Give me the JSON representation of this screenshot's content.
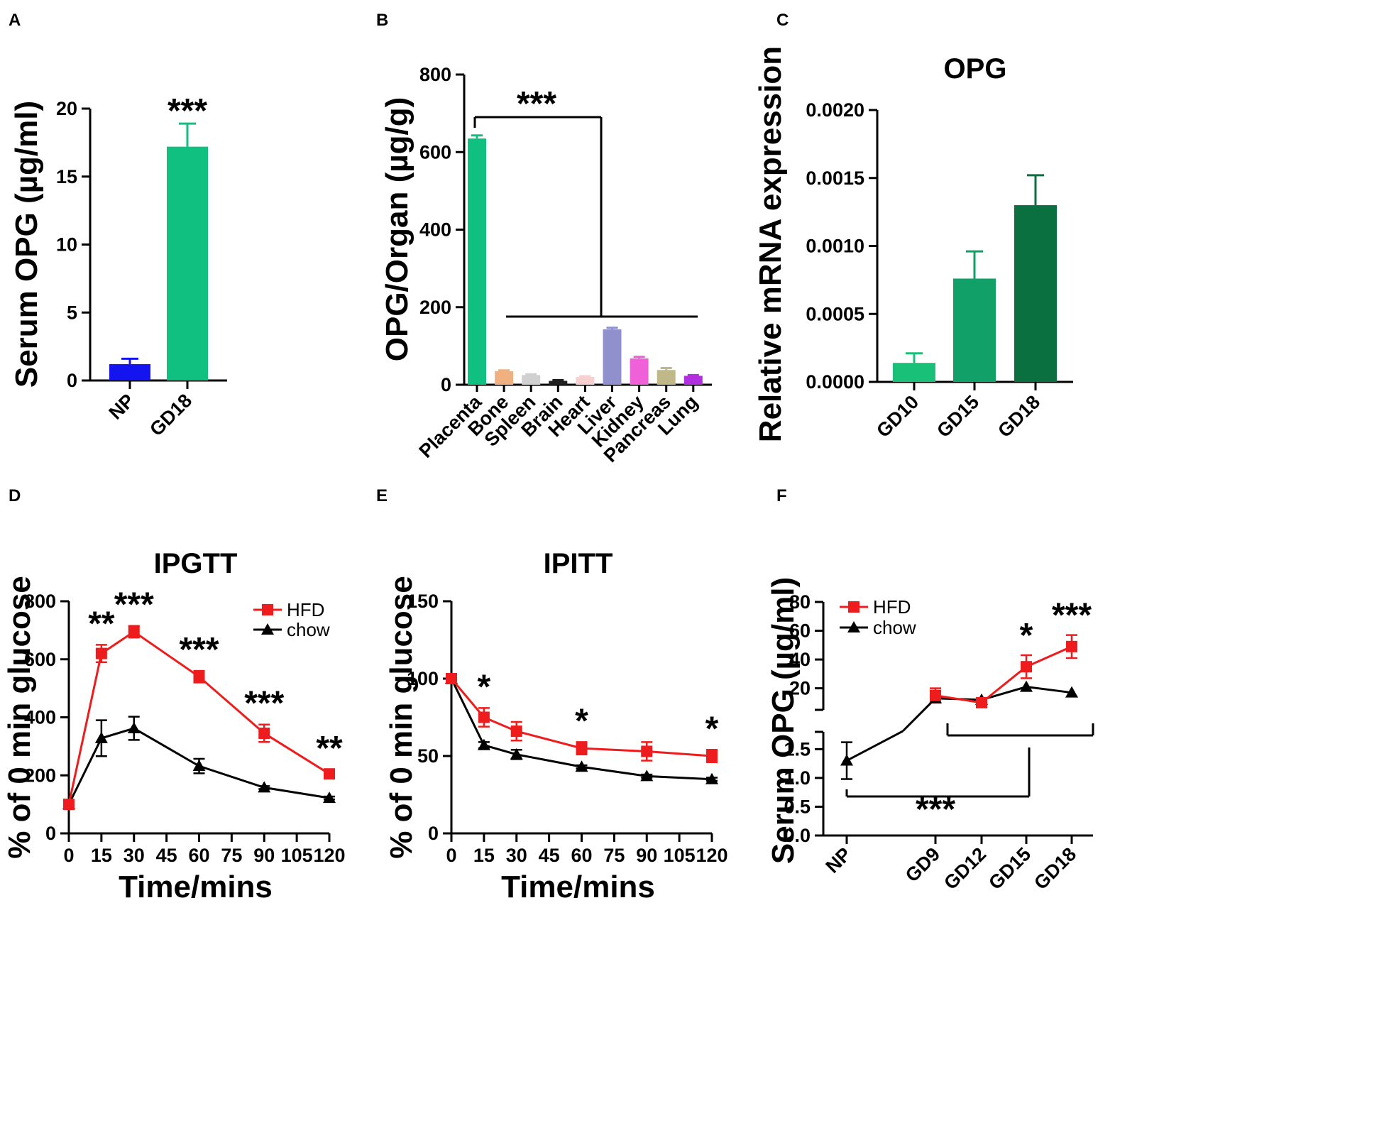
{
  "chart_data": [
    {
      "panel": "A",
      "type": "bar",
      "ylabel": "Serum OPG (µg/ml)",
      "ylim": [
        0,
        20
      ],
      "yticks": [
        "0",
        "5",
        "10",
        "15",
        "20"
      ],
      "categories": [
        "NP",
        "GD18"
      ],
      "values": [
        1.2,
        17.2
      ],
      "errors": [
        0.4,
        1.7
      ],
      "colors": [
        "#1414f0",
        "#10c080"
      ],
      "annotations": [
        {
          "category": "GD18",
          "text": "***"
        }
      ]
    },
    {
      "panel": "B",
      "type": "bar",
      "ylabel": "OPG/Organ (µg/g)",
      "ylim": [
        0,
        800
      ],
      "yticks": [
        "0",
        "200",
        "400",
        "600",
        "800"
      ],
      "categories": [
        "Placenta",
        "Bone",
        "Spleen",
        "Brain",
        "Heart",
        "Liver",
        "Kidney",
        "Pancreas",
        "Lung"
      ],
      "values": [
        635,
        35,
        25,
        10,
        20,
        143,
        68,
        38,
        23
      ],
      "errors": [
        8,
        2,
        2,
        2,
        2,
        4,
        4,
        5,
        2
      ],
      "colors": [
        "#10c080",
        "#f0b080",
        "#d0d0d0",
        "#202020",
        "#f8d0d0",
        "#9090cc",
        "#f060d8",
        "#c0b888",
        "#b030e0"
      ],
      "annotations": [
        {
          "text": "***",
          "compare": "Placenta vs all other organs"
        }
      ]
    },
    {
      "panel": "C",
      "type": "bar",
      "title": "OPG",
      "ylabel": "Relative mRNA expression",
      "ylim": [
        0,
        0.002
      ],
      "yticks": [
        "0.0000",
        "0.0005",
        "0.0010",
        "0.0015",
        "0.0020"
      ],
      "categories": [
        "GD10",
        "GD15",
        "GD18"
      ],
      "values": [
        0.00014,
        0.00076,
        0.0013
      ],
      "errors": [
        7e-05,
        0.0002,
        0.00022
      ],
      "colors": [
        "#18c078",
        "#10a068",
        "#0a7040"
      ]
    },
    {
      "panel": "D",
      "type": "line",
      "title": "IPGTT",
      "xlabel": "Time/mins",
      "ylabel": "% of 0 min glucose",
      "xlim": [
        0,
        120
      ],
      "ylim": [
        0,
        800
      ],
      "xticks": [
        "0",
        "15",
        "30",
        "45",
        "60",
        "75",
        "90",
        "105",
        "120"
      ],
      "yticks": [
        "0",
        "200",
        "400",
        "600",
        "800"
      ],
      "x": [
        0,
        15,
        30,
        60,
        90,
        120
      ],
      "series": [
        {
          "name": "HFD",
          "color": "#ee1c1c",
          "marker": "square",
          "values": [
            100,
            620,
            695,
            540,
            345,
            205
          ],
          "errors": [
            0,
            30,
            20,
            20,
            30,
            15
          ]
        },
        {
          "name": "chow",
          "color": "#000000",
          "marker": "triangle",
          "values": [
            100,
            328,
            362,
            232,
            158,
            122
          ],
          "errors": [
            0,
            62,
            40,
            25,
            5,
            5
          ]
        }
      ],
      "annotations": [
        {
          "x": 15,
          "text": "**"
        },
        {
          "x": 30,
          "text": "***"
        },
        {
          "x": 60,
          "text": "***"
        },
        {
          "x": 90,
          "text": "***"
        },
        {
          "x": 120,
          "text": "**"
        }
      ],
      "legend_position": "top-right"
    },
    {
      "panel": "E",
      "type": "line",
      "title": "IPITT",
      "xlabel": "Time/mins",
      "ylabel": "% of 0 min glucose",
      "xlim": [
        0,
        120
      ],
      "ylim": [
        0,
        150
      ],
      "xticks": [
        "0",
        "15",
        "30",
        "45",
        "60",
        "75",
        "90",
        "105",
        "120"
      ],
      "yticks": [
        "0",
        "50",
        "100",
        "150"
      ],
      "x": [
        0,
        15,
        30,
        60,
        90,
        120
      ],
      "series": [
        {
          "name": "HFD",
          "color": "#ee1c1c",
          "marker": "square",
          "values": [
            100,
            75,
            66,
            55,
            53,
            50
          ],
          "errors": [
            0,
            6,
            6,
            4,
            6,
            4
          ]
        },
        {
          "name": "chow",
          "color": "#000000",
          "marker": "triangle",
          "values": [
            100,
            57,
            51,
            43,
            37,
            35
          ],
          "errors": [
            0,
            2,
            3,
            1,
            1,
            1
          ]
        }
      ],
      "annotations": [
        {
          "x": 15,
          "text": "*"
        },
        {
          "x": 60,
          "text": "*"
        },
        {
          "x": 120,
          "text": "*"
        }
      ]
    },
    {
      "panel": "F",
      "type": "line",
      "ylabel": "Serum OPG (µg/ml)",
      "categories": [
        "NP",
        "GD9",
        "GD12",
        "GD15",
        "GD18"
      ],
      "ylim_lower": [
        0,
        1.8
      ],
      "yticks_lower": [
        "0.0",
        "0.5",
        "1.0",
        "1.5"
      ],
      "ylim_upper": [
        5,
        80
      ],
      "yticks_upper": [
        "20",
        "40",
        "60",
        "80"
      ],
      "series": [
        {
          "name": "HFD",
          "color": "#ee1c1c",
          "marker": "square",
          "values": [
            null,
            15,
            10,
            35,
            49
          ],
          "errors": [
            null,
            5,
            3,
            8,
            8
          ]
        },
        {
          "name": "chow",
          "color": "#000000",
          "marker": "triangle",
          "values": [
            1.3,
            13,
            12,
            21,
            17
          ],
          "errors": [
            0.32,
            3,
            2,
            2,
            2
          ]
        }
      ],
      "annotations": [
        {
          "category": "GD15",
          "text": "*"
        },
        {
          "category": "GD18",
          "text": "***"
        },
        {
          "text": "***",
          "compare": "NP vs GD15"
        }
      ],
      "legend_position": "top-left"
    }
  ]
}
